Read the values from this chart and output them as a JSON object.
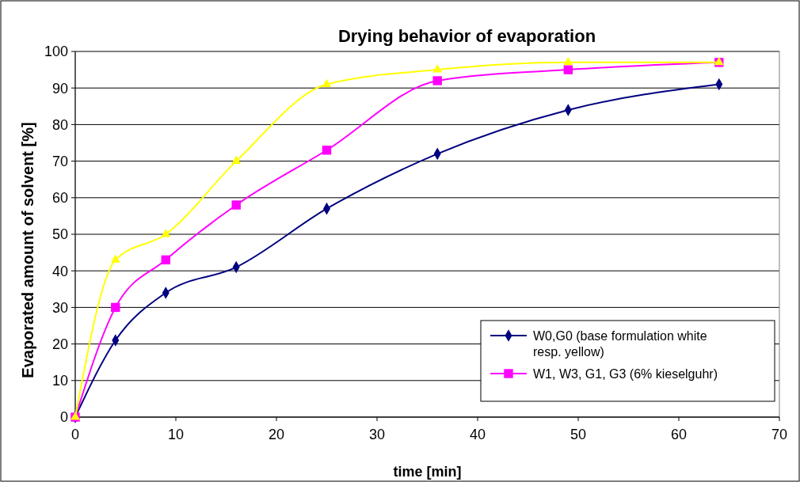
{
  "chart_data": {
    "type": "line",
    "title": "Drying behavior of evaporation",
    "xlabel": "time [min]",
    "ylabel": "Evaporated amount of solvent [%]",
    "x": [
      0,
      4,
      9,
      16,
      25,
      36,
      49,
      64
    ],
    "series": [
      {
        "name": "W0,G0 (base formulation white resp. yellow)",
        "color": "#000080",
        "marker": "diamond",
        "values": [
          0,
          21,
          34,
          41,
          57,
          72,
          84,
          91
        ]
      },
      {
        "name": "W1, W3, G1, G3 (6% kieselguhr)",
        "color": "#ff00ff",
        "marker": "square",
        "values": [
          0,
          30,
          43,
          58,
          73,
          92,
          95,
          97
        ]
      },
      {
        "color": "#ffff00",
        "marker": "triangle",
        "values": [
          0,
          43,
          50,
          70,
          91,
          95,
          97,
          97
        ]
      }
    ],
    "xlim": [
      0,
      70
    ],
    "xticks": [
      0,
      10,
      20,
      30,
      40,
      50,
      60,
      70
    ],
    "ylim": [
      0,
      100
    ],
    "yticks": [
      0,
      10,
      20,
      30,
      40,
      50,
      60,
      70,
      80,
      90,
      100
    ],
    "grid": "y",
    "legend": "bottom right",
    "line_style": "solid"
  }
}
